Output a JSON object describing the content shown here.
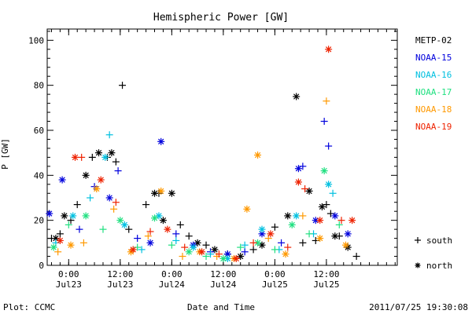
{
  "chart_data": {
    "type": "scatter",
    "title": "Hemispheric Power [GW]",
    "xlabel": "Date and Time",
    "ylabel": "P [GW]",
    "xlim": [
      "2011-07-22T19:00",
      "2011-07-26T04:30"
    ],
    "ylim": [
      0,
      105
    ],
    "yticks": [
      0,
      20,
      40,
      60,
      80,
      100
    ],
    "xticks": [
      {
        "t": "2011-07-23T00:00",
        "time": "0:00",
        "date": "Jul23"
      },
      {
        "t": "2011-07-23T12:00",
        "time": "12:00",
        "date": "Jul23"
      },
      {
        "t": "2011-07-24T00:00",
        "time": "0:00",
        "date": "Jul24"
      },
      {
        "t": "2011-07-24T12:00",
        "time": "12:00",
        "date": "Jul24"
      },
      {
        "t": "2011-07-25T00:00",
        "time": "0:00",
        "date": "Jul25"
      },
      {
        "t": "2011-07-25T12:00",
        "time": "12:00",
        "date": "Jul25"
      }
    ],
    "grid": false,
    "legend_position": "right",
    "marker_key": {
      "south": "+",
      "north": "*"
    },
    "marker_legend": [
      {
        "symbol": "+",
        "label": "south"
      },
      {
        "symbol": "*",
        "label": "north"
      }
    ],
    "series": [
      {
        "name": "METP-02",
        "color": "#000000",
        "points": [
          [
            "2011-07-22T20:00",
            12,
            "+"
          ],
          [
            "2011-07-22T21:00",
            12,
            "*"
          ],
          [
            "2011-07-22T22:00",
            14,
            "+"
          ],
          [
            "2011-07-22T23:00",
            22,
            "*"
          ],
          [
            "2011-07-23T00:30",
            20,
            "+"
          ],
          [
            "2011-07-23T02:00",
            27,
            "+"
          ],
          [
            "2011-07-23T04:00",
            40,
            "*"
          ],
          [
            "2011-07-23T05:30",
            48,
            "+"
          ],
          [
            "2011-07-23T07:00",
            50,
            "*"
          ],
          [
            "2011-07-23T09:00",
            48,
            "+"
          ],
          [
            "2011-07-23T10:00",
            50,
            "*"
          ],
          [
            "2011-07-23T11:00",
            46,
            "+"
          ],
          [
            "2011-07-23T12:30",
            80,
            "+"
          ],
          [
            "2011-07-23T14:00",
            16,
            "+"
          ],
          [
            "2011-07-23T18:00",
            27,
            "+"
          ],
          [
            "2011-07-23T20:00",
            32,
            "*"
          ],
          [
            "2011-07-23T21:00",
            32,
            "+"
          ],
          [
            "2011-07-23T22:00",
            20,
            "*"
          ],
          [
            "2011-07-24T00:00",
            32,
            "*"
          ],
          [
            "2011-07-24T02:00",
            18,
            "+"
          ],
          [
            "2011-07-24T04:00",
            13,
            "+"
          ],
          [
            "2011-07-24T06:00",
            10,
            "*"
          ],
          [
            "2011-07-24T08:00",
            9,
            "+"
          ],
          [
            "2011-07-24T10:00",
            7,
            "*"
          ],
          [
            "2011-07-24T13:00",
            5,
            "+"
          ],
          [
            "2011-07-24T16:00",
            4,
            "*"
          ],
          [
            "2011-07-24T19:00",
            7,
            "+"
          ],
          [
            "2011-07-24T21:00",
            9,
            "*"
          ],
          [
            "2011-07-25T00:00",
            17,
            "+"
          ],
          [
            "2011-07-25T03:00",
            22,
            "*"
          ],
          [
            "2011-07-25T05:00",
            75,
            "*"
          ],
          [
            "2011-07-25T06:30",
            10,
            "+"
          ],
          [
            "2011-07-25T08:00",
            33,
            "*"
          ],
          [
            "2011-07-25T09:30",
            11,
            "+"
          ],
          [
            "2011-07-25T11:00",
            26,
            "*"
          ],
          [
            "2011-07-25T12:00",
            27,
            "+"
          ],
          [
            "2011-07-25T13:00",
            23,
            "+"
          ],
          [
            "2011-07-25T14:00",
            13,
            "*"
          ],
          [
            "2011-07-25T15:00",
            13,
            "+"
          ],
          [
            "2011-07-25T17:00",
            8,
            "*"
          ],
          [
            "2011-07-25T19:00",
            4,
            "+"
          ]
        ]
      },
      {
        "name": "NOAA-15",
        "color": "#0000dd",
        "points": [
          [
            "2011-07-22T19:30",
            23,
            "*"
          ],
          [
            "2011-07-22T22:30",
            38,
            "*"
          ],
          [
            "2011-07-23T02:30",
            16,
            "+"
          ],
          [
            "2011-07-23T06:00",
            35,
            "+"
          ],
          [
            "2011-07-23T09:30",
            30,
            "*"
          ],
          [
            "2011-07-23T11:30",
            42,
            "+"
          ],
          [
            "2011-07-23T16:00",
            12,
            "+"
          ],
          [
            "2011-07-23T19:00",
            10,
            "*"
          ],
          [
            "2011-07-23T21:30",
            55,
            "*"
          ],
          [
            "2011-07-24T01:00",
            14,
            "+"
          ],
          [
            "2011-07-24T05:00",
            9,
            "*"
          ],
          [
            "2011-07-24T09:00",
            6,
            "+"
          ],
          [
            "2011-07-24T13:00",
            5,
            "*"
          ],
          [
            "2011-07-24T17:00",
            6,
            "+"
          ],
          [
            "2011-07-24T21:00",
            14,
            "*"
          ],
          [
            "2011-07-25T01:30",
            10,
            "+"
          ],
          [
            "2011-07-25T05:30",
            43,
            "*"
          ],
          [
            "2011-07-25T06:30",
            44,
            "+"
          ],
          [
            "2011-07-25T09:30",
            20,
            "*"
          ],
          [
            "2011-07-25T11:30",
            64,
            "+"
          ],
          [
            "2011-07-25T12:30",
            53,
            "+"
          ],
          [
            "2011-07-25T14:00",
            22,
            "*"
          ],
          [
            "2011-07-25T17:00",
            14,
            "*"
          ]
        ]
      },
      {
        "name": "NOAA-16",
        "color": "#00c0e0",
        "points": [
          [
            "2011-07-22T21:00",
            10,
            "+"
          ],
          [
            "2011-07-23T01:00",
            22,
            "*"
          ],
          [
            "2011-07-23T05:00",
            30,
            "+"
          ],
          [
            "2011-07-23T08:30",
            48,
            "*"
          ],
          [
            "2011-07-23T09:30",
            58,
            "+"
          ],
          [
            "2011-07-23T13:00",
            18,
            "*"
          ],
          [
            "2011-07-23T17:00",
            7,
            "+"
          ],
          [
            "2011-07-23T21:00",
            22,
            "*"
          ],
          [
            "2011-07-24T01:00",
            11,
            "+"
          ],
          [
            "2011-07-24T05:00",
            8,
            "*"
          ],
          [
            "2011-07-24T09:00",
            5,
            "+"
          ],
          [
            "2011-07-24T13:00",
            3,
            "*"
          ],
          [
            "2011-07-24T17:00",
            9,
            "+"
          ],
          [
            "2011-07-24T21:00",
            16,
            "*"
          ],
          [
            "2011-07-25T01:00",
            7,
            "+"
          ],
          [
            "2011-07-25T05:00",
            22,
            "*"
          ],
          [
            "2011-07-25T09:00",
            14,
            "+"
          ],
          [
            "2011-07-25T12:30",
            36,
            "*"
          ],
          [
            "2011-07-25T13:30",
            32,
            "+"
          ]
        ]
      },
      {
        "name": "NOAA-17",
        "color": "#20e080",
        "points": [
          [
            "2011-07-22T20:30",
            8,
            "*"
          ],
          [
            "2011-07-23T00:00",
            18,
            "+"
          ],
          [
            "2011-07-23T04:00",
            22,
            "*"
          ],
          [
            "2011-07-23T08:00",
            16,
            "+"
          ],
          [
            "2011-07-23T12:00",
            20,
            "*"
          ],
          [
            "2011-07-23T16:00",
            8,
            "+"
          ],
          [
            "2011-07-23T20:00",
            21,
            "*"
          ],
          [
            "2011-07-24T00:00",
            9,
            "+"
          ],
          [
            "2011-07-24T04:00",
            6,
            "*"
          ],
          [
            "2011-07-24T08:00",
            4,
            "+"
          ],
          [
            "2011-07-24T12:00",
            3,
            "*"
          ],
          [
            "2011-07-24T16:00",
            8,
            "+"
          ],
          [
            "2011-07-24T20:00",
            10,
            "*"
          ],
          [
            "2011-07-25T00:00",
            7,
            "+"
          ],
          [
            "2011-07-25T04:00",
            18,
            "*"
          ],
          [
            "2011-07-25T08:00",
            14,
            "+"
          ],
          [
            "2011-07-25T11:30",
            42,
            "*"
          ],
          [
            "2011-07-25T15:00",
            18,
            "+"
          ]
        ]
      },
      {
        "name": "NOAA-18",
        "color": "#ff9900",
        "points": [
          [
            "2011-07-22T21:30",
            6,
            "+"
          ],
          [
            "2011-07-23T00:30",
            9,
            "*"
          ],
          [
            "2011-07-23T03:30",
            10,
            "+"
          ],
          [
            "2011-07-23T06:30",
            34,
            "*"
          ],
          [
            "2011-07-23T10:30",
            25,
            "+"
          ],
          [
            "2011-07-23T14:30",
            6,
            "*"
          ],
          [
            "2011-07-23T18:30",
            13,
            "+"
          ],
          [
            "2011-07-23T21:30",
            33,
            "*"
          ],
          [
            "2011-07-24T02:30",
            4,
            "+"
          ],
          [
            "2011-07-24T06:30",
            6,
            "*"
          ],
          [
            "2011-07-24T10:30",
            4,
            "+"
          ],
          [
            "2011-07-24T14:30",
            3,
            "*"
          ],
          [
            "2011-07-24T17:30",
            25,
            "*"
          ],
          [
            "2011-07-24T20:00",
            49,
            "*"
          ],
          [
            "2011-07-24T22:30",
            12,
            "+"
          ],
          [
            "2011-07-25T02:30",
            5,
            "*"
          ],
          [
            "2011-07-25T06:30",
            22,
            "+"
          ],
          [
            "2011-07-25T10:30",
            12,
            "*"
          ],
          [
            "2011-07-25T12:00",
            73,
            "+"
          ],
          [
            "2011-07-25T16:30",
            9,
            "*"
          ]
        ]
      },
      {
        "name": "NOAA-19",
        "color": "#ee2200",
        "points": [
          [
            "2011-07-22T22:00",
            11,
            "*"
          ],
          [
            "2011-07-23T01:30",
            48,
            "*"
          ],
          [
            "2011-07-23T03:00",
            48,
            "+"
          ],
          [
            "2011-07-23T07:30",
            38,
            "*"
          ],
          [
            "2011-07-23T11:00",
            28,
            "+"
          ],
          [
            "2011-07-23T15:00",
            7,
            "*"
          ],
          [
            "2011-07-23T19:00",
            15,
            "+"
          ],
          [
            "2011-07-23T23:00",
            16,
            "*"
          ],
          [
            "2011-07-24T03:00",
            8,
            "+"
          ],
          [
            "2011-07-24T07:00",
            6,
            "*"
          ],
          [
            "2011-07-24T11:00",
            5,
            "+"
          ],
          [
            "2011-07-24T15:00",
            3,
            "*"
          ],
          [
            "2011-07-24T19:00",
            10,
            "+"
          ],
          [
            "2011-07-24T23:00",
            14,
            "*"
          ],
          [
            "2011-07-25T03:00",
            8,
            "+"
          ],
          [
            "2011-07-25T05:30",
            37,
            "*"
          ],
          [
            "2011-07-25T07:00",
            34,
            "+"
          ],
          [
            "2011-07-25T10:30",
            20,
            "*"
          ],
          [
            "2011-07-25T12:30",
            96,
            "*"
          ],
          [
            "2011-07-25T15:30",
            20,
            "+"
          ],
          [
            "2011-07-25T18:00",
            20,
            "*"
          ]
        ]
      }
    ]
  },
  "footer": {
    "credit": "Plot: CCMC",
    "timestamp": "2011/07/25 19:30:08"
  }
}
